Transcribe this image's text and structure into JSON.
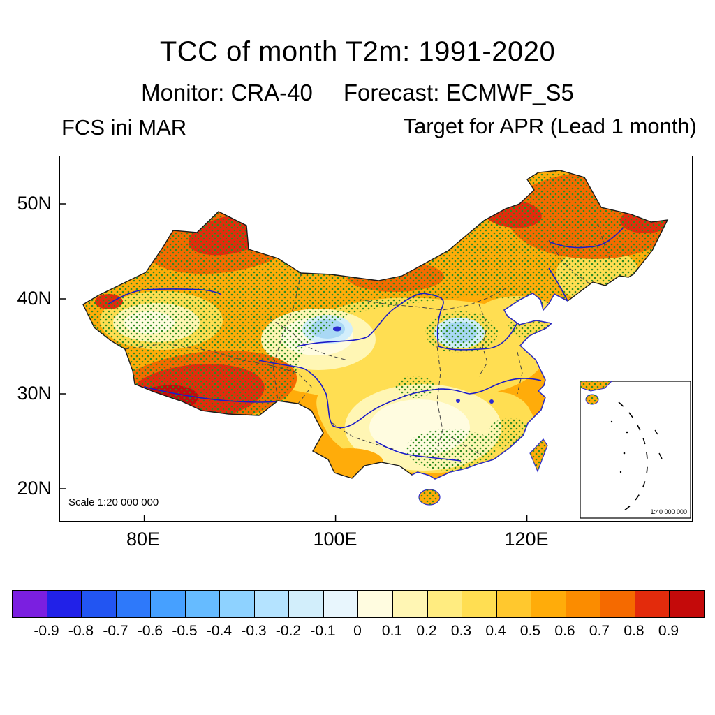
{
  "header": {
    "title": "TCC of month T2m: 1991-2020",
    "monitor": "Monitor: CRA-40",
    "forecast": "Forecast: ECMWF_S5",
    "init_label": "FCS ini MAR",
    "target_label": "Target for APR (Lead 1 month)"
  },
  "map": {
    "y_ticks": [
      "50N",
      "40N",
      "30N",
      "20N"
    ],
    "x_ticks": [
      "80E",
      "100E",
      "120E"
    ],
    "scale_label": "Scale 1:20 000 000",
    "inset_scale_label": "1:40 000 000",
    "stipple_color": "#2E8B22",
    "river_color": "#1B1BC8",
    "coast_color": "#2B2BD0"
  },
  "colorbar": {
    "tick_labels": [
      "-0.9",
      "-0.8",
      "-0.7",
      "-0.6",
      "-0.5",
      "-0.4",
      "-0.3",
      "-0.2",
      "-0.1",
      "0",
      "0.1",
      "0.2",
      "0.3",
      "0.4",
      "0.5",
      "0.6",
      "0.7",
      "0.8",
      "0.9"
    ],
    "colors": [
      "#7B1FE0",
      "#2121E8",
      "#2255F2",
      "#2E79FA",
      "#46A0FF",
      "#66BBFF",
      "#8ED2FF",
      "#B4E3FF",
      "#D2EEFB",
      "#E8F6FD",
      "#FFFCE0",
      "#FFF6B4",
      "#FFEC80",
      "#FFDE52",
      "#FFC82E",
      "#FFAC0A",
      "#FB8C00",
      "#F56A00",
      "#E32B0C",
      "#C40A0A"
    ]
  },
  "chart_data": {
    "type": "heatmap",
    "title": "TCC of month T2m: 1991-2020",
    "monitor": "CRA-40",
    "forecast": "ECMWF_S5",
    "init_month": "MAR",
    "target_month": "APR",
    "lead": "1 month",
    "region": "China",
    "xlabel_ticks": [
      "80E",
      "100E",
      "120E"
    ],
    "ylabel_ticks": [
      "20N",
      "30N",
      "40N",
      "50N"
    ],
    "colorbar_levels": [
      -0.9,
      -0.8,
      -0.7,
      -0.6,
      -0.5,
      -0.4,
      -0.3,
      -0.2,
      -0.1,
      0,
      0.1,
      0.2,
      0.3,
      0.4,
      0.5,
      0.6,
      0.7,
      0.8,
      0.9
    ],
    "overlay": "green stipple dots over much of northern, western and northeastern China",
    "approx_pattern": [
      {
        "area": "NW Xinjiang (~85-92E, 45-48N)",
        "tcc": "0.7 to 0.9"
      },
      {
        "area": "SW Tibet (~80-95E, 28-33N)",
        "tcc": "0.7 to >0.9"
      },
      {
        "area": "Northern band / Inner Mongolia / NE China",
        "tcc": "0.4 to 0.7"
      },
      {
        "area": "Central China (~100-105E, 35-38N)",
        "tcc": "-0.2 to 0.1"
      },
      {
        "area": "Shanxi area (~112-115E, 36-38N)",
        "tcc": "-0.2 to 0.1"
      },
      {
        "area": "South-central China (~104-112E, 24-30N)",
        "tcc": "0 to 0.2"
      },
      {
        "area": "East coast and south coast",
        "tcc": "0.2 to 0.5"
      }
    ]
  }
}
